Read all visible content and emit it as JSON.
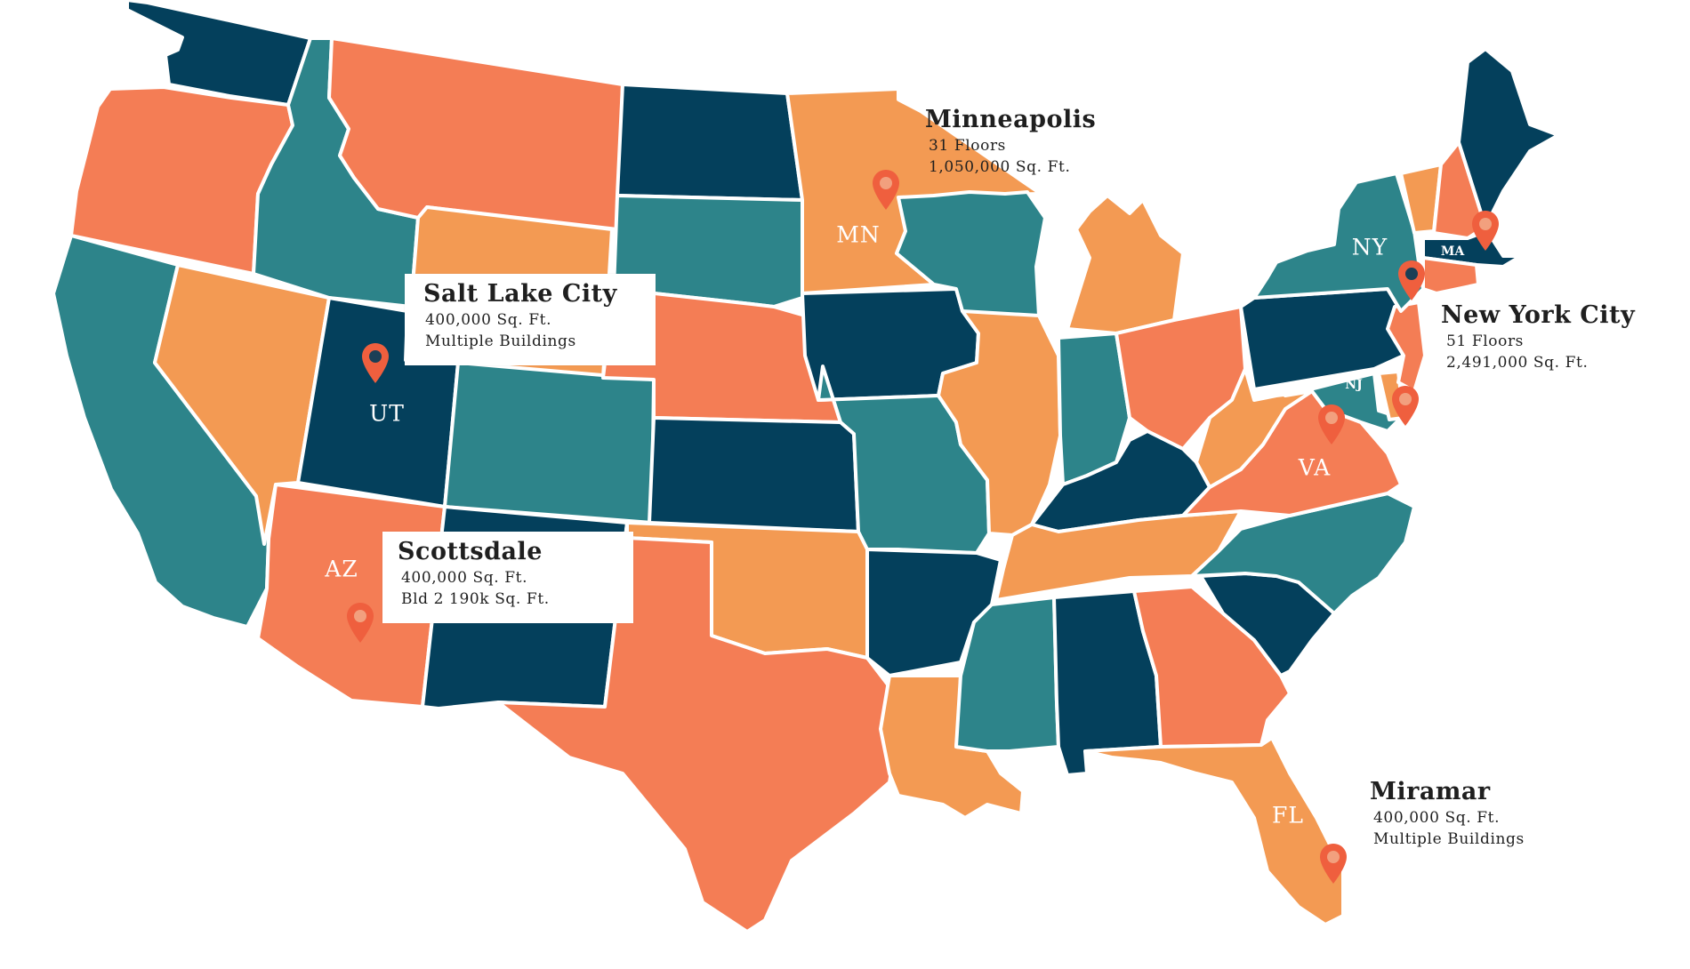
{
  "colors": {
    "navy": "#04405c",
    "teal": "#2d848a",
    "coral": "#f47d55",
    "orange": "#f39a53",
    "pin": "#ef5f3e",
    "pin_inner": "#f2a07e",
    "pin_inner_dark": "#1b3f56"
  },
  "state_labels": {
    "mn": "MN",
    "ut": "UT",
    "az": "AZ",
    "ny": "NY",
    "ma": "MA",
    "nj": "NJ",
    "va": "VA",
    "fl": "FL"
  },
  "callouts": {
    "minneapolis": {
      "city": "Minneapolis",
      "line1": "31 Floors",
      "line2": "1,050,000 Sq. Ft."
    },
    "salt_lake_city": {
      "city": "Salt Lake City",
      "line1": "400,000 Sq. Ft.",
      "line2": "Multiple Buildings"
    },
    "scottsdale": {
      "city": "Scottsdale",
      "line1": "400,000 Sq. Ft.",
      "line2": "Bld 2 190k Sq. Ft."
    },
    "new_york_city": {
      "city": "New York City",
      "line1": "51 Floors",
      "line2": "2,491,000 Sq. Ft."
    },
    "miramar": {
      "city": "Miramar",
      "line1": "400,000 Sq. Ft.",
      "line2": "Multiple Buildings"
    }
  },
  "pins": [
    "location-pin-icon"
  ]
}
